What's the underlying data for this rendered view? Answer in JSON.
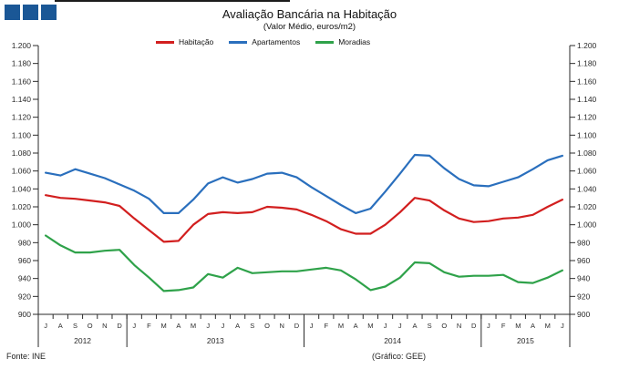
{
  "logo": {
    "square_color": "#1a5796",
    "square_count": 3
  },
  "header": {
    "title": "Avaliação Bancária na Habitação",
    "subtitle": "(Valor Médio, euros/m2)"
  },
  "footer": {
    "source": "Fonte: INE",
    "credit": "(Gráfico: GEE)"
  },
  "chart_data": {
    "type": "line",
    "title": "Avaliação Bancária na Habitação",
    "subtitle": "(Valor Médio, euros/m2)",
    "ylabel": "euros/m2",
    "ylim": [
      900,
      1200
    ],
    "ytick_step": 20,
    "grid": false,
    "legend_position": "top",
    "y_axis_sides": [
      "left",
      "right"
    ],
    "x_months": [
      "J",
      "A",
      "S",
      "O",
      "N",
      "D",
      "J",
      "F",
      "M",
      "A",
      "M",
      "J",
      "J",
      "A",
      "S",
      "O",
      "N",
      "D",
      "J",
      "F",
      "M",
      "A",
      "M",
      "J",
      "J",
      "A",
      "S",
      "O",
      "N",
      "D",
      "J",
      "F",
      "M",
      "A",
      "M",
      "J"
    ],
    "years": [
      {
        "label": "2012",
        "months": 6
      },
      {
        "label": "2013",
        "months": 12
      },
      {
        "label": "2014",
        "months": 12
      },
      {
        "label": "2015",
        "months": 6
      }
    ],
    "series": [
      {
        "name": "Habitação",
        "color": "#d21f1f",
        "values": [
          1033,
          1030,
          1029,
          1027,
          1025,
          1021,
          1007,
          994,
          981,
          982,
          1000,
          1012,
          1014,
          1013,
          1014,
          1020,
          1019,
          1017,
          1011,
          1004,
          995,
          990,
          990,
          1000,
          1014,
          1030,
          1027,
          1016,
          1007,
          1003,
          1004,
          1007,
          1008,
          1011,
          1020,
          1028
        ]
      },
      {
        "name": "Apartamentos",
        "color": "#2a6fbd",
        "values": [
          1058,
          1055,
          1062,
          1057,
          1052,
          1045,
          1038,
          1029,
          1013,
          1013,
          1028,
          1046,
          1053,
          1047,
          1051,
          1057,
          1058,
          1053,
          1042,
          1032,
          1022,
          1013,
          1018,
          1037,
          1057,
          1078,
          1077,
          1063,
          1051,
          1044,
          1043,
          1048,
          1053,
          1062,
          1072,
          1077
        ]
      },
      {
        "name": "Moradias",
        "color": "#2fa24a",
        "values": [
          988,
          977,
          969,
          969,
          971,
          972,
          955,
          941,
          926,
          927,
          930,
          945,
          941,
          952,
          946,
          947,
          948,
          948,
          950,
          952,
          949,
          939,
          927,
          931,
          941,
          958,
          957,
          947,
          942,
          943,
          943,
          944,
          936,
          935,
          941,
          949
        ]
      }
    ]
  }
}
